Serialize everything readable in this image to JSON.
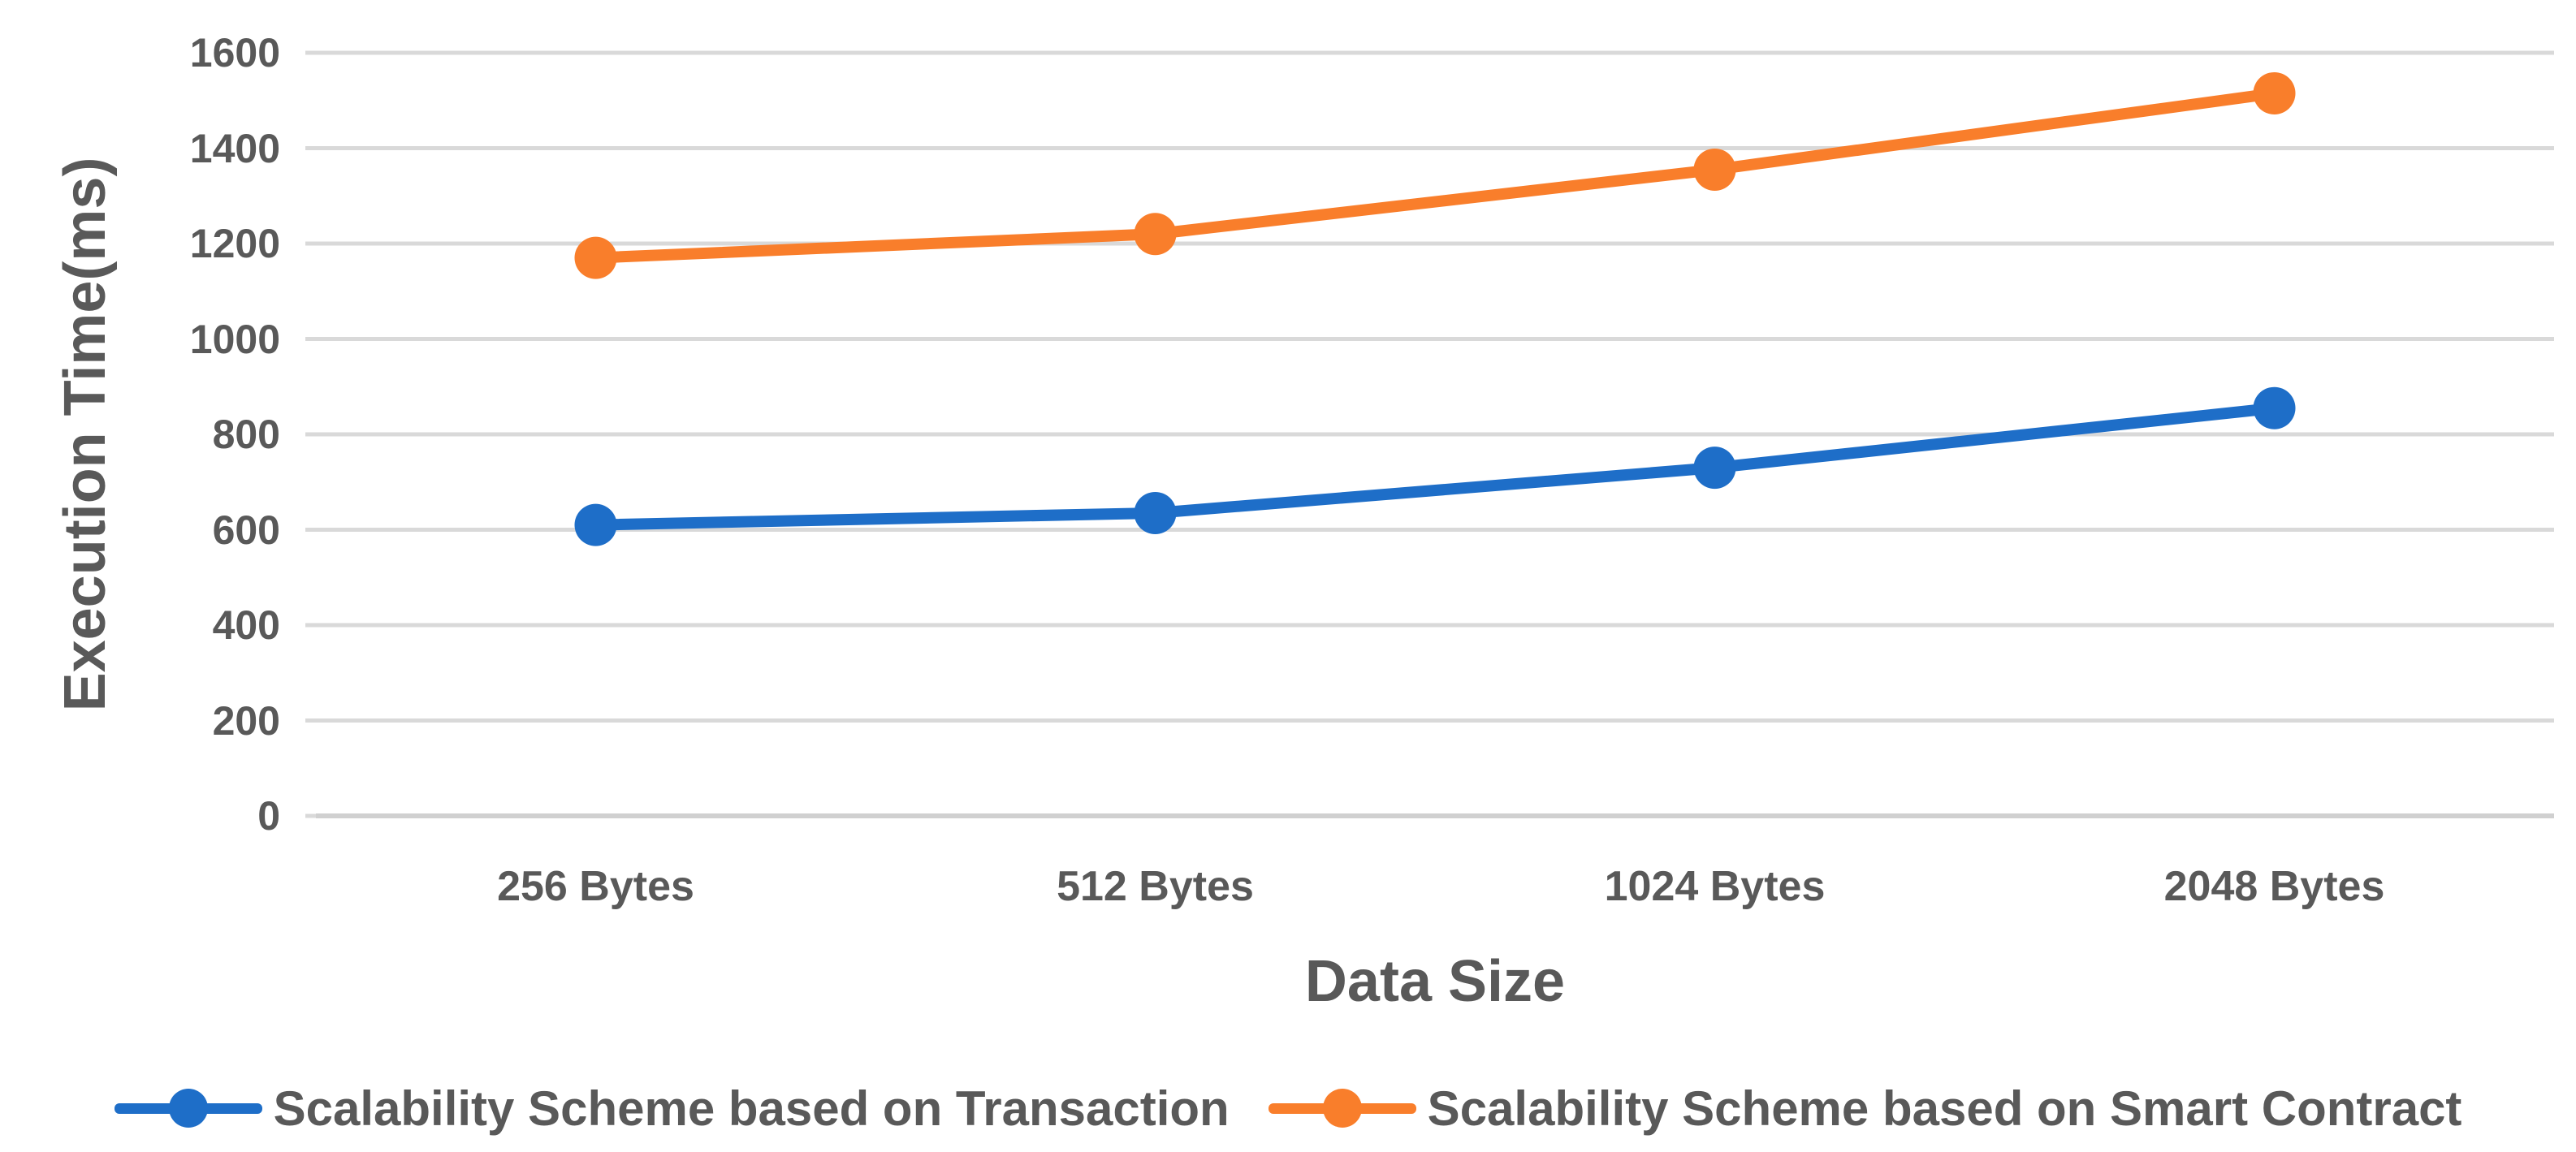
{
  "chart_data": {
    "type": "line",
    "title": "",
    "categories": [
      "256 Bytes",
      "512 Bytes",
      "1024 Bytes",
      "2048 Bytes"
    ],
    "series": [
      {
        "name": "Scalability Scheme based on Transaction",
        "color": "#1E6EC8",
        "values": [
          610,
          635,
          730,
          855
        ]
      },
      {
        "name": "Scalability Scheme based on Smart Contract",
        "color": "#F97E2B",
        "values": [
          1170,
          1220,
          1355,
          1515
        ]
      }
    ],
    "xlabel": "Data Size",
    "ylabel": "Execution Time(ms)",
    "ylim": [
      0,
      1600
    ],
    "yticks": [
      0,
      200,
      400,
      600,
      800,
      1000,
      1200,
      1400,
      1600
    ],
    "grid": "horizontal",
    "legend_position": "bottom",
    "marker": "circle"
  },
  "colors": {
    "text": "#595959",
    "gridline": "#D9D9D9",
    "axis_line": "#D0D0D0",
    "background": "#FFFFFF"
  }
}
